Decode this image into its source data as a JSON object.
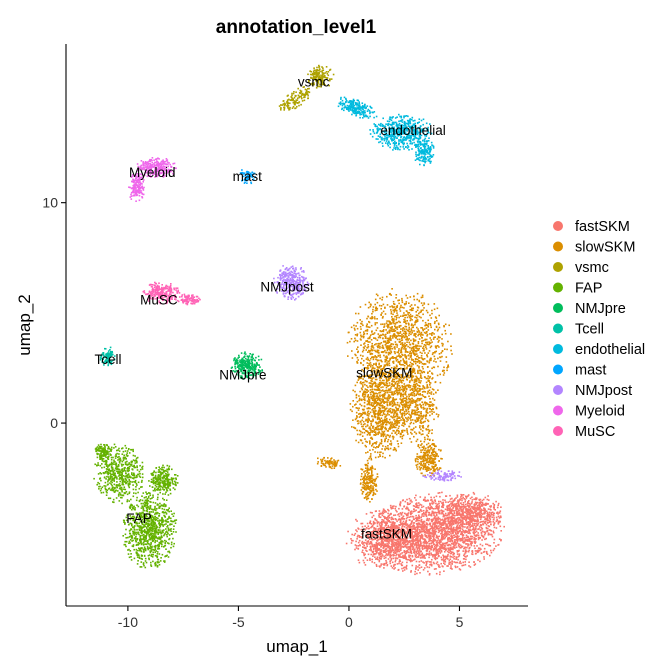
{
  "chart_data": {
    "type": "scatter",
    "title": "annotation_level1",
    "xlabel": "umap_1",
    "ylabel": "umap_2",
    "xlim": [
      -12.8,
      8.1
    ],
    "ylim": [
      -8.3,
      17.2
    ],
    "x_ticks": [
      -10,
      -5,
      0,
      5
    ],
    "y_ticks": [
      0,
      10
    ],
    "grid": false,
    "legend_position": "right",
    "series": [
      {
        "name": "fastSKM",
        "color": "#F8766D",
        "label_pos": [
          1.7,
          -5.0
        ],
        "blobs": [
          {
            "cx": 3.9,
            "cy": -5.0,
            "rx": 3.0,
            "ry": 1.8,
            "rot": 5,
            "n": 2200
          },
          {
            "cx": 1.7,
            "cy": -5.3,
            "rx": 1.8,
            "ry": 1.3,
            "rot": 0,
            "n": 700
          },
          {
            "cx": 5.6,
            "cy": -4.1,
            "rx": 1.3,
            "ry": 0.9,
            "rot": 0,
            "n": 400
          }
        ]
      },
      {
        "name": "slowSKM",
        "color": "#DB8E00",
        "label_pos": [
          1.6,
          2.3
        ],
        "blobs": [
          {
            "cx": 2.3,
            "cy": 3.5,
            "rx": 2.3,
            "ry": 2.5,
            "rot": 0,
            "n": 1300
          },
          {
            "cx": 1.4,
            "cy": 0.6,
            "rx": 1.3,
            "ry": 2.2,
            "rot": 0,
            "n": 900
          },
          {
            "cx": 3.0,
            "cy": 0.8,
            "rx": 1.1,
            "ry": 1.6,
            "rot": 0,
            "n": 450
          },
          {
            "cx": 3.6,
            "cy": -1.6,
            "rx": 0.6,
            "ry": 0.9,
            "rot": 0,
            "n": 250
          },
          {
            "cx": 0.9,
            "cy": -2.6,
            "rx": 0.4,
            "ry": 1.0,
            "rot": 0,
            "n": 200
          },
          {
            "cx": -0.9,
            "cy": -1.8,
            "rx": 0.6,
            "ry": 0.25,
            "rot": -10,
            "n": 80
          }
        ]
      },
      {
        "name": "vsmc",
        "color": "#AEA200",
        "label_pos": [
          -1.6,
          15.5
        ],
        "blobs": [
          {
            "cx": -1.3,
            "cy": 15.7,
            "rx": 0.6,
            "ry": 0.5,
            "rot": 0,
            "n": 160
          },
          {
            "cx": -2.4,
            "cy": 14.7,
            "rx": 0.9,
            "ry": 0.35,
            "rot": 35,
            "n": 130
          }
        ]
      },
      {
        "name": "FAP",
        "color": "#64B200",
        "label_pos": [
          -9.5,
          -4.3
        ],
        "blobs": [
          {
            "cx": -9.0,
            "cy": -4.9,
            "rx": 1.2,
            "ry": 1.7,
            "rot": 0,
            "n": 850
          },
          {
            "cx": -10.4,
            "cy": -2.3,
            "rx": 1.1,
            "ry": 1.3,
            "rot": 0,
            "n": 500
          },
          {
            "cx": -8.4,
            "cy": -2.6,
            "rx": 0.7,
            "ry": 0.7,
            "rot": 0,
            "n": 250
          },
          {
            "cx": -11.1,
            "cy": -1.3,
            "rx": 0.4,
            "ry": 0.4,
            "rot": 0,
            "n": 120
          }
        ]
      },
      {
        "name": "NMJpre",
        "color": "#00BD5C",
        "label_pos": [
          -4.8,
          2.2
        ],
        "blobs": [
          {
            "cx": -4.6,
            "cy": 2.6,
            "rx": 0.7,
            "ry": 0.6,
            "rot": 0,
            "n": 280
          }
        ]
      },
      {
        "name": "Tcell",
        "color": "#00C1A7",
        "label_pos": [
          -10.9,
          2.9
        ],
        "blobs": [
          {
            "cx": -10.9,
            "cy": 3.0,
            "rx": 0.35,
            "ry": 0.45,
            "rot": 0,
            "n": 100
          }
        ]
      },
      {
        "name": "endothelial",
        "color": "#00BADE",
        "label_pos": [
          2.9,
          13.3
        ],
        "blobs": [
          {
            "cx": 2.4,
            "cy": 13.2,
            "rx": 1.4,
            "ry": 0.8,
            "rot": 0,
            "n": 500
          },
          {
            "cx": 0.3,
            "cy": 14.3,
            "rx": 1.0,
            "ry": 0.35,
            "rot": -20,
            "n": 200
          },
          {
            "cx": 3.4,
            "cy": 12.3,
            "rx": 0.5,
            "ry": 0.6,
            "rot": 0,
            "n": 150
          }
        ]
      },
      {
        "name": "mast",
        "color": "#00A6FF",
        "label_pos": [
          -4.6,
          11.2
        ],
        "blobs": [
          {
            "cx": -4.6,
            "cy": 11.2,
            "rx": 0.4,
            "ry": 0.35,
            "rot": 0,
            "n": 60
          }
        ]
      },
      {
        "name": "NMJpost",
        "color": "#B385FF",
        "label_pos": [
          -2.8,
          6.2
        ],
        "blobs": [
          {
            "cx": -2.6,
            "cy": 6.4,
            "rx": 0.8,
            "ry": 0.8,
            "rot": 0,
            "n": 320
          },
          {
            "cx": 4.3,
            "cy": -2.4,
            "rx": 0.9,
            "ry": 0.25,
            "rot": 0,
            "n": 90
          }
        ]
      },
      {
        "name": "Myeloid",
        "color": "#EF67EB",
        "label_pos": [
          -8.9,
          11.4
        ],
        "blobs": [
          {
            "cx": -8.7,
            "cy": 11.6,
            "rx": 0.9,
            "ry": 0.45,
            "rot": 0,
            "n": 260
          },
          {
            "cx": -9.6,
            "cy": 10.7,
            "rx": 0.35,
            "ry": 0.7,
            "rot": 0,
            "n": 160
          }
        ]
      },
      {
        "name": "MuSC",
        "color": "#FF63B6",
        "label_pos": [
          -8.6,
          5.6
        ],
        "blobs": [
          {
            "cx": -8.5,
            "cy": 5.9,
            "rx": 0.8,
            "ry": 0.5,
            "rot": 0,
            "n": 240
          },
          {
            "cx": -7.3,
            "cy": 5.6,
            "rx": 0.6,
            "ry": 0.25,
            "rot": 0,
            "n": 100
          }
        ]
      }
    ]
  }
}
